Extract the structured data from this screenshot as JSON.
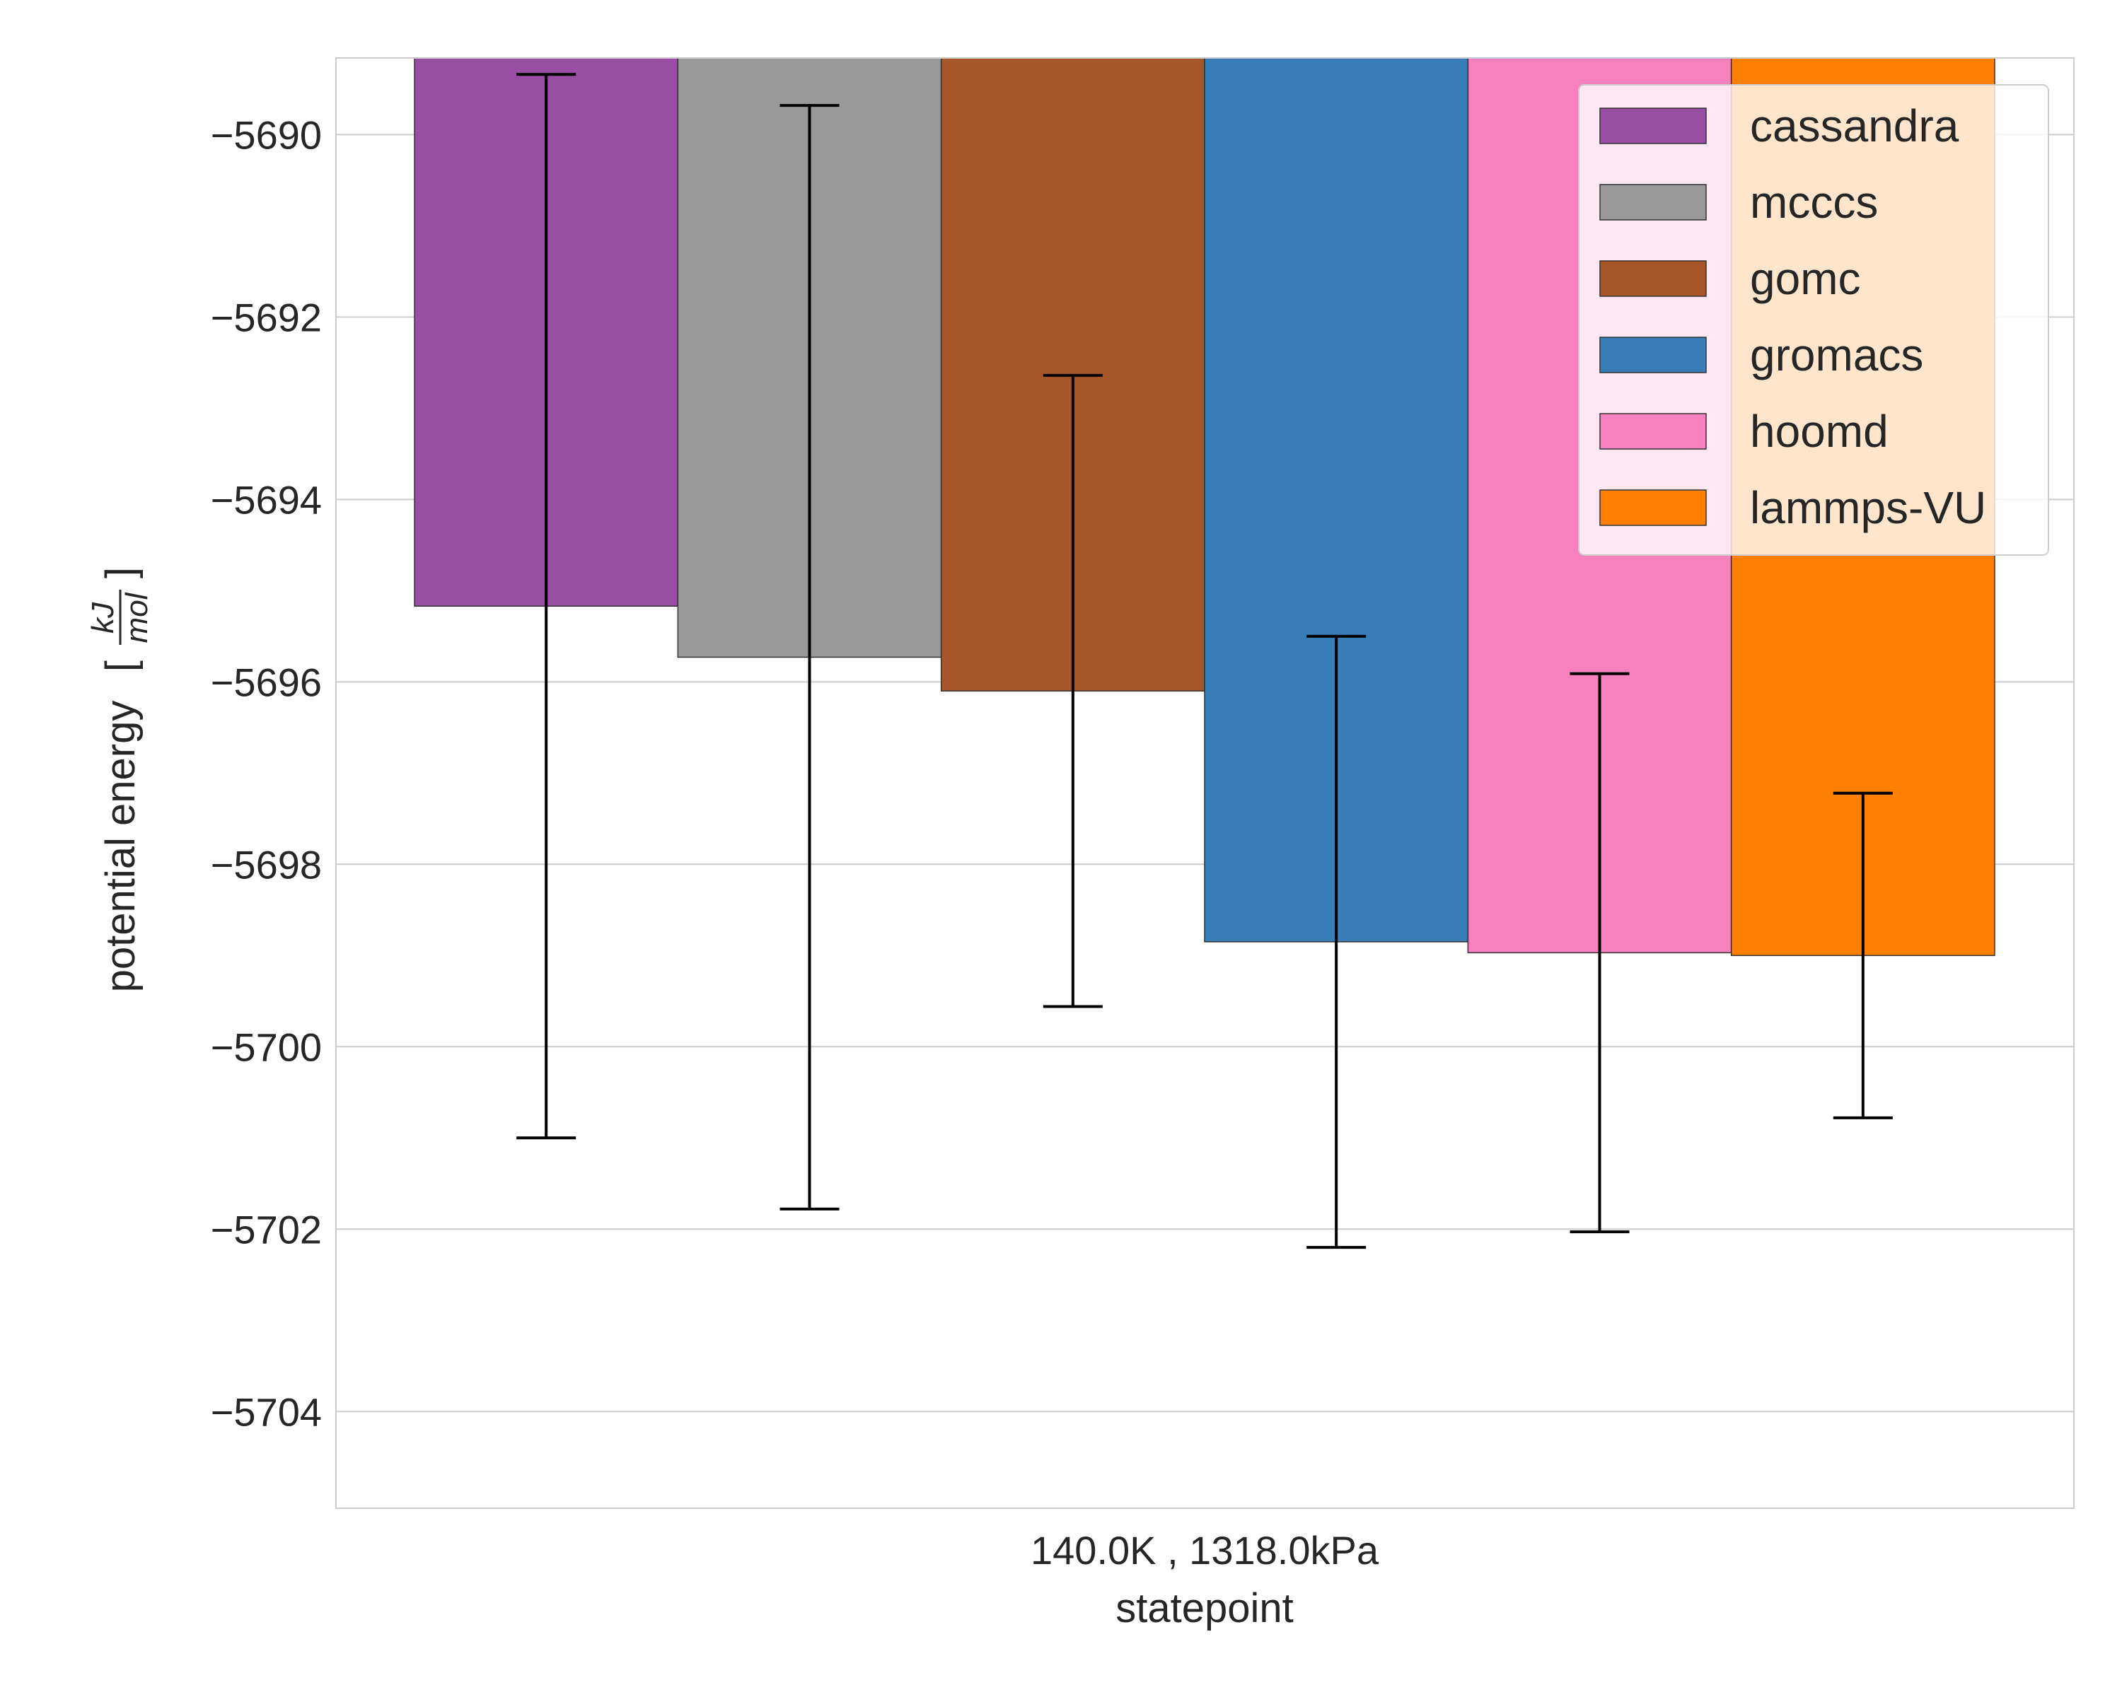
{
  "chart_data": {
    "type": "bar",
    "title": "",
    "xlabel": "statepoint",
    "ylabel": "potential energy",
    "ylabel_unit": {
      "numerator": "kJ",
      "denominator": "mol"
    },
    "categories": [
      "140.0K , 1318.0kPa"
    ],
    "ylim": [
      -5705.06,
      -5689.16
    ],
    "yticks": [
      -5690,
      -5692,
      -5694,
      -5696,
      -5698,
      -5700,
      -5702,
      -5704
    ],
    "ytick_labels": [
      "−5690",
      "−5692",
      "−5694",
      "−5696",
      "−5698",
      "−5700",
      "−5702",
      "−5704"
    ],
    "grid": true,
    "legend_position": "top-right",
    "series": [
      {
        "name": "cassandra",
        "value": -5695.17,
        "error": 5.83,
        "color": "#984ea3"
      },
      {
        "name": "mcccs",
        "value": -5695.73,
        "error": 6.05,
        "color": "#999999"
      },
      {
        "name": "gomc",
        "value": -5696.1,
        "error": 3.46,
        "color": "#a65628"
      },
      {
        "name": "gromacs",
        "value": -5698.85,
        "error": 3.35,
        "color": "#377eb8"
      },
      {
        "name": "hoomd",
        "value": -5698.97,
        "error": 3.06,
        "color": "#f781bf"
      },
      {
        "name": "lammps-VU",
        "value": -5699.0,
        "error": 1.78,
        "color": "#ff7f00"
      }
    ]
  }
}
